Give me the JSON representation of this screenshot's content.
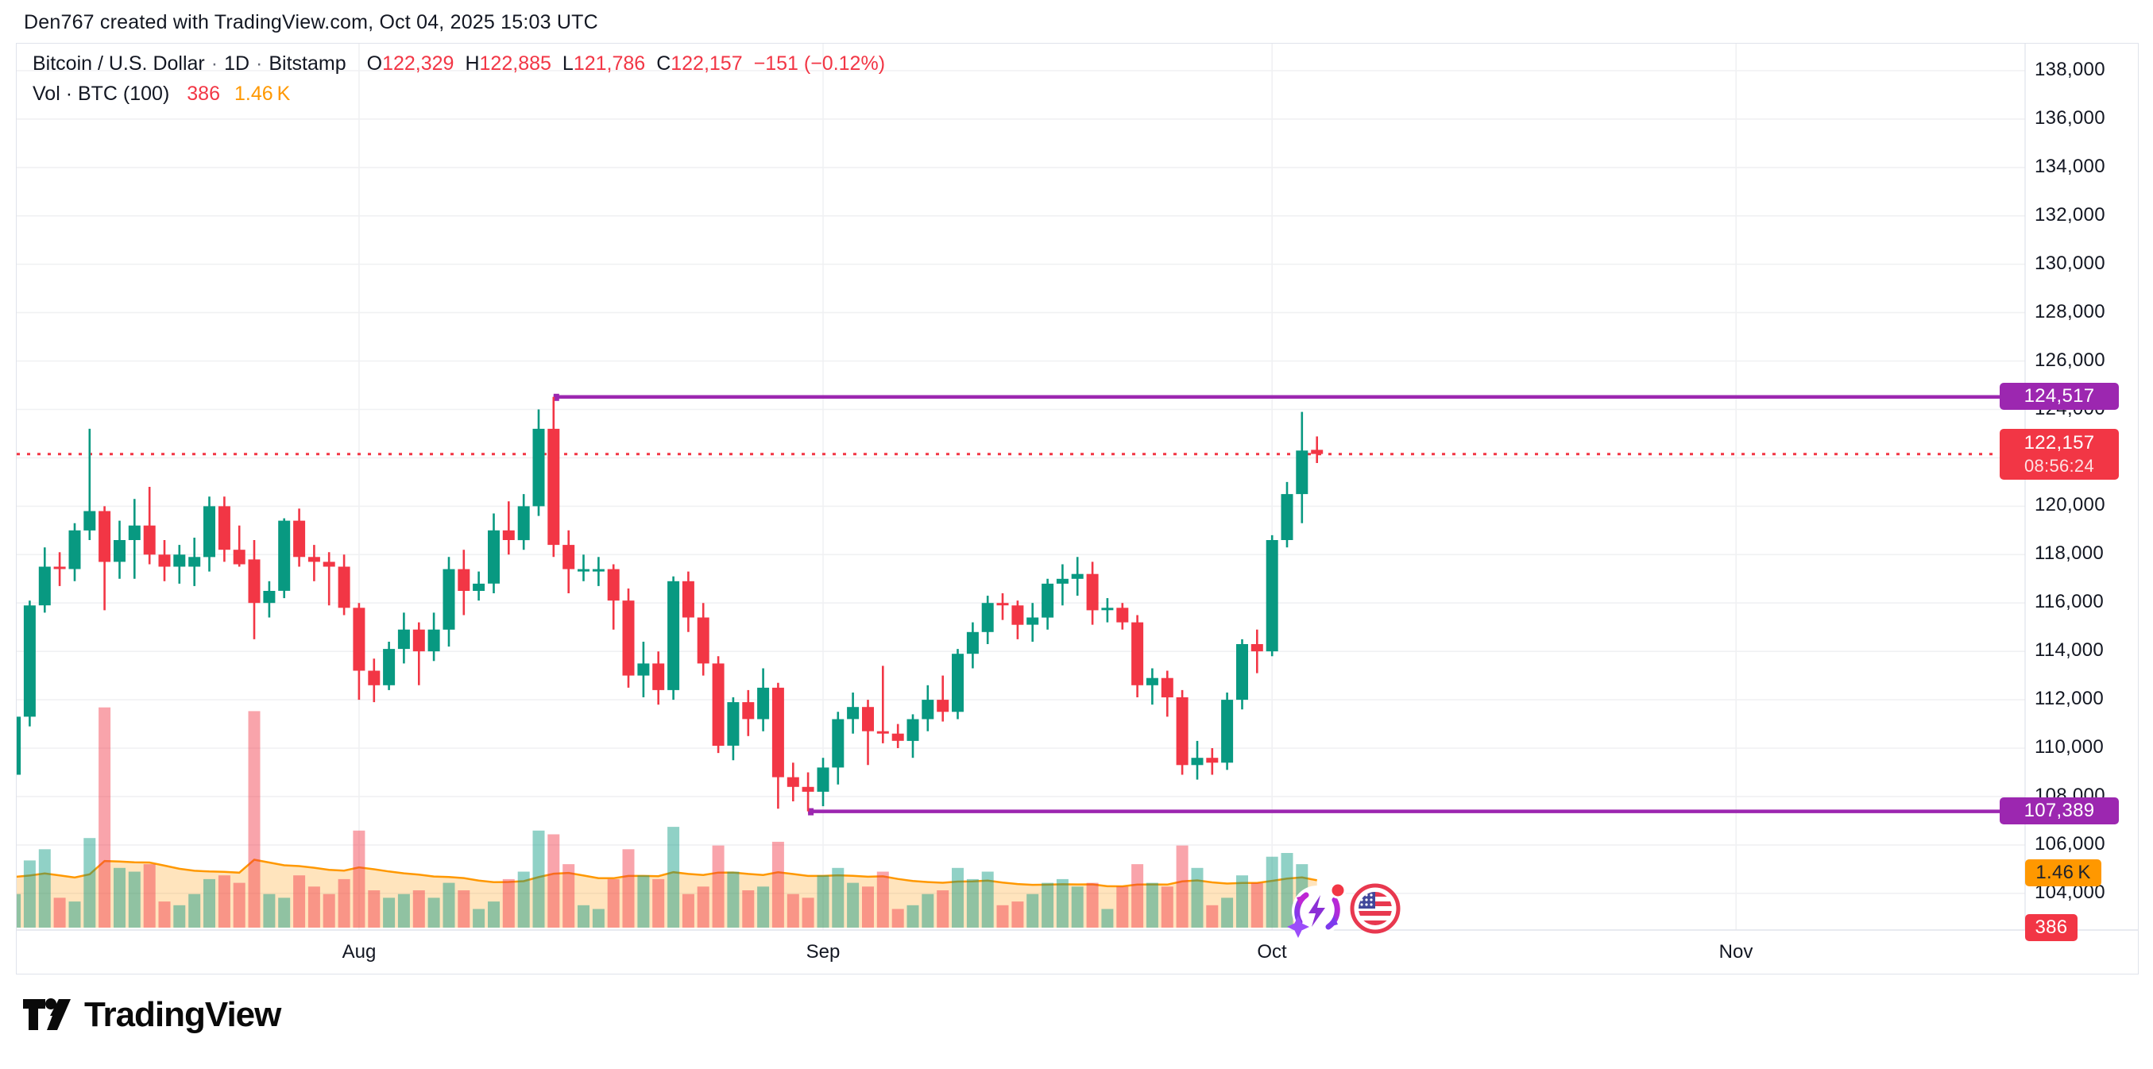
{
  "attribution": "Den767 created with TradingView.com, Oct 04, 2025 15:03 UTC",
  "legend": {
    "symbol": "Bitcoin / U.S. Dollar",
    "interval": "1D",
    "exchange": "Bitstamp",
    "separator": "·",
    "ohlc": [
      {
        "label": "O",
        "value": "122,329"
      },
      {
        "label": "H",
        "value": "122,885"
      },
      {
        "label": "L",
        "value": "121,786"
      },
      {
        "label": "C",
        "value": "122,157"
      }
    ],
    "change": "−151 (−0.12%)",
    "volume_label": "Vol · BTC (100)",
    "volume_value": "386",
    "volume_ma_value": "1.46 K"
  },
  "price_axis": {
    "ticks": [
      "138,000",
      "136,000",
      "134,000",
      "132,000",
      "130,000",
      "128,000",
      "126,000",
      "124,000",
      "122,000",
      "120,000",
      "118,000",
      "116,000",
      "114,000",
      "112,000",
      "110,000",
      "108,000",
      "106,000",
      "104,000"
    ],
    "badges": {
      "high_level": {
        "text": "124,517",
        "price": 124517,
        "color": "#9c27b0"
      },
      "last_price": {
        "text": "122,157",
        "countdown": "08:56:24",
        "price": 122157,
        "color": "#f23645"
      },
      "low_level": {
        "text": "107,389",
        "price": 107389,
        "color": "#9c27b0"
      },
      "volume_ma": {
        "text": "1.46 K",
        "value": 1460,
        "color": "#ff9800",
        "text_color": "#1e222d"
      },
      "volume_last": {
        "text": "386",
        "value": 386,
        "color": "#f23645",
        "text_color": "#ffffff"
      }
    }
  },
  "time_axis": {
    "labels": [
      {
        "label": "Aug",
        "candle_index": 23
      },
      {
        "label": "Sep",
        "candle_index": 54
      },
      {
        "label": "Oct",
        "candle_index": 84
      },
      {
        "label": "Nov",
        "candle_index": 115
      }
    ]
  },
  "icons": {
    "spark_event": "purple-cycle-lightning-sparkle-with-red-dot",
    "flag_event": "us-flag-round-badge"
  },
  "footer": {
    "logo_text": "TradingView"
  },
  "colors": {
    "up": "#089981",
    "down": "#f23645",
    "vol_up": "rgba(8,153,129,0.45)",
    "vol_down": "rgba(242,54,69,0.45)",
    "vol_ma_line": "#ff9800",
    "vol_ma_fill": "rgba(255,152,0,0.26)",
    "level_line": "#9c27b0",
    "last_price_line": "#f23645",
    "grid": "#f0f1f3",
    "border": "#e0e3eb",
    "text": "#131722"
  },
  "chart_data": {
    "type": "candlestick",
    "title": "Bitcoin / U.S. Dollar · 1D · Bitstamp",
    "interval": "1D",
    "start_date": "2025-07-09",
    "end_date": "2025-10-04",
    "price_axis_range": [
      102500,
      139100
    ],
    "grid": true,
    "legend_position": "top-left",
    "current_price": 122157,
    "levels": [
      {
        "price": 124517,
        "starts_at_index": 36
      },
      {
        "price": 107389,
        "starts_at_index": 53
      }
    ],
    "columns": [
      "date",
      "open",
      "high",
      "low",
      "close",
      "volume_btc"
    ],
    "candles": [
      [
        "Jul 9",
        108900,
        111600,
        108200,
        111300,
        900
      ],
      [
        "Jul 10",
        111300,
        116100,
        110900,
        115900,
        1800
      ],
      [
        "Jul 11",
        115900,
        118300,
        115600,
        117500,
        2100
      ],
      [
        "Jul 12",
        117500,
        118100,
        116700,
        117400,
        800
      ],
      [
        "Jul 13",
        117400,
        119300,
        116900,
        119000,
        700
      ],
      [
        "Jul 14",
        119000,
        123200,
        118600,
        119800,
        2400
      ],
      [
        "Jul 15",
        119800,
        120000,
        115700,
        117700,
        5900
      ],
      [
        "Jul 16",
        117700,
        119400,
        117000,
        118600,
        1600
      ],
      [
        "Jul 17",
        118600,
        120300,
        117000,
        119200,
        1500
      ],
      [
        "Jul 18",
        119200,
        120800,
        117600,
        118000,
        1700
      ],
      [
        "Jul 19",
        118000,
        118600,
        116900,
        117500,
        700
      ],
      [
        "Jul 20",
        117500,
        118400,
        116800,
        118000,
        600
      ],
      [
        "Jul 21",
        117500,
        118700,
        116700,
        117900,
        900
      ],
      [
        "Jul 22",
        117900,
        120400,
        117300,
        120000,
        1300
      ],
      [
        "Jul 23",
        120000,
        120400,
        117700,
        118200,
        1400
      ],
      [
        "Jul 24",
        118200,
        119200,
        117500,
        117600,
        1200
      ],
      [
        "Jul 25",
        117800,
        118600,
        114500,
        116000,
        5800
      ],
      [
        "Jul 26",
        116000,
        116900,
        115400,
        116500,
        900
      ],
      [
        "Jul 27",
        116500,
        119500,
        116200,
        119400,
        800
      ],
      [
        "Jul 28",
        119400,
        119900,
        117500,
        117900,
        1400
      ],
      [
        "Jul 29",
        117900,
        118400,
        116900,
        117700,
        1100
      ],
      [
        "Jul 30",
        117700,
        118100,
        115900,
        117500,
        900
      ],
      [
        "Jul 31",
        117500,
        118000,
        115500,
        115800,
        1300
      ],
      [
        "Aug 1",
        115800,
        116000,
        112000,
        113200,
        2600
      ],
      [
        "Aug 2",
        113200,
        113700,
        111900,
        112600,
        1000
      ],
      [
        "Aug 3",
        112600,
        114400,
        112400,
        114100,
        800
      ],
      [
        "Aug 4",
        114100,
        115600,
        113500,
        114900,
        900
      ],
      [
        "Aug 5",
        114900,
        115200,
        112600,
        114000,
        1000
      ],
      [
        "Aug 6",
        114000,
        115600,
        113600,
        114900,
        800
      ],
      [
        "Aug 7",
        114900,
        117900,
        114200,
        117400,
        1200
      ],
      [
        "Aug 8",
        117400,
        118200,
        115500,
        116500,
        1000
      ],
      [
        "Aug 9",
        116500,
        117300,
        116100,
        116800,
        500
      ],
      [
        "Aug 10",
        116800,
        119700,
        116400,
        119000,
        700
      ],
      [
        "Aug 11",
        119000,
        120200,
        118000,
        118600,
        1300
      ],
      [
        "Aug 12",
        118600,
        120500,
        118200,
        120000,
        1500
      ],
      [
        "Aug 13",
        120000,
        124000,
        119600,
        123200,
        2600
      ],
      [
        "Aug 14",
        123200,
        124517,
        117900,
        118400,
        2500
      ],
      [
        "Aug 15",
        118400,
        119000,
        116400,
        117400,
        1700
      ],
      [
        "Aug 16",
        117400,
        118000,
        116900,
        117400,
        600
      ],
      [
        "Aug 17",
        117400,
        117900,
        116700,
        117400,
        500
      ],
      [
        "Aug 18",
        117400,
        117600,
        114900,
        116100,
        1300
      ],
      [
        "Aug 19",
        116100,
        116600,
        112500,
        113000,
        2100
      ],
      [
        "Aug 20",
        113000,
        114400,
        112100,
        113500,
        1400
      ],
      [
        "Aug 21",
        113500,
        114000,
        111800,
        112400,
        1300
      ],
      [
        "Aug 22",
        112400,
        117100,
        112000,
        116900,
        2700
      ],
      [
        "Aug 23",
        116900,
        117300,
        114800,
        115400,
        900
      ],
      [
        "Aug 24",
        115400,
        116000,
        113000,
        113500,
        1100
      ],
      [
        "Aug 25",
        113500,
        113800,
        109800,
        110100,
        2200
      ],
      [
        "Aug 26",
        110100,
        112100,
        109500,
        111900,
        1500
      ],
      [
        "Aug 27",
        111900,
        112400,
        110500,
        111200,
        1000
      ],
      [
        "Aug 28",
        111200,
        113300,
        110700,
        112500,
        1100
      ],
      [
        "Aug 29",
        112500,
        112700,
        107500,
        108800,
        2300
      ],
      [
        "Aug 30",
        108800,
        109400,
        107800,
        108400,
        900
      ],
      [
        "Aug 31",
        108400,
        109000,
        107389,
        108200,
        800
      ],
      [
        "Sep 1",
        108200,
        109600,
        107600,
        109200,
        1400
      ],
      [
        "Sep 2",
        109200,
        111500,
        108500,
        111200,
        1600
      ],
      [
        "Sep 3",
        111200,
        112300,
        110600,
        111700,
        1200
      ],
      [
        "Sep 4",
        111700,
        112000,
        109300,
        110700,
        1100
      ],
      [
        "Sep 5",
        110700,
        113400,
        110200,
        110600,
        1500
      ],
      [
        "Sep 6",
        110600,
        111000,
        110000,
        110300,
        500
      ],
      [
        "Sep 7",
        110300,
        111400,
        109600,
        111200,
        600
      ],
      [
        "Sep 8",
        111200,
        112600,
        110700,
        112000,
        900
      ],
      [
        "Sep 9",
        112000,
        113000,
        111100,
        111500,
        1000
      ],
      [
        "Sep 10",
        111500,
        114100,
        111200,
        113900,
        1600
      ],
      [
        "Sep 11",
        113900,
        115200,
        113300,
        114800,
        1300
      ],
      [
        "Sep 12",
        114800,
        116300,
        114300,
        116000,
        1500
      ],
      [
        "Sep 13",
        116000,
        116400,
        115300,
        115900,
        600
      ],
      [
        "Sep 14",
        115900,
        116100,
        114500,
        115100,
        700
      ],
      [
        "Sep 15",
        115100,
        116000,
        114400,
        115400,
        900
      ],
      [
        "Sep 16",
        115400,
        117000,
        114900,
        116800,
        1200
      ],
      [
        "Sep 17",
        116800,
        117600,
        115900,
        117000,
        1300
      ],
      [
        "Sep 18",
        117000,
        117900,
        116300,
        117200,
        1100
      ],
      [
        "Sep 19",
        117200,
        117700,
        115100,
        115700,
        1200
      ],
      [
        "Sep 20",
        115700,
        116200,
        115200,
        115800,
        500
      ],
      [
        "Sep 21",
        115800,
        116000,
        114900,
        115200,
        1100
      ],
      [
        "Sep 22",
        115200,
        115500,
        112100,
        112600,
        1700
      ],
      [
        "Sep 23",
        112600,
        113300,
        111800,
        112900,
        1200
      ],
      [
        "Sep 24",
        112900,
        113200,
        111300,
        112100,
        1100
      ],
      [
        "Sep 25",
        112100,
        112400,
        108900,
        109300,
        2200
      ],
      [
        "Sep 26",
        109300,
        110300,
        108700,
        109600,
        1600
      ],
      [
        "Sep 27",
        109600,
        110000,
        108900,
        109400,
        600
      ],
      [
        "Sep 28",
        109400,
        112300,
        109100,
        112000,
        800
      ],
      [
        "Sep 29",
        112000,
        114500,
        111600,
        114300,
        1400
      ],
      [
        "Sep 30",
        114300,
        114900,
        113100,
        114000,
        1200
      ],
      [
        "Oct 1",
        114000,
        118800,
        113800,
        118600,
        1900
      ],
      [
        "Oct 2",
        118600,
        121000,
        118300,
        120500,
        2000
      ],
      [
        "Oct 3",
        120500,
        123900,
        119300,
        122300,
        1700
      ],
      [
        "Oct 4",
        122329,
        122885,
        121786,
        122157,
        386
      ]
    ],
    "volume_ma_last": 1460
  }
}
